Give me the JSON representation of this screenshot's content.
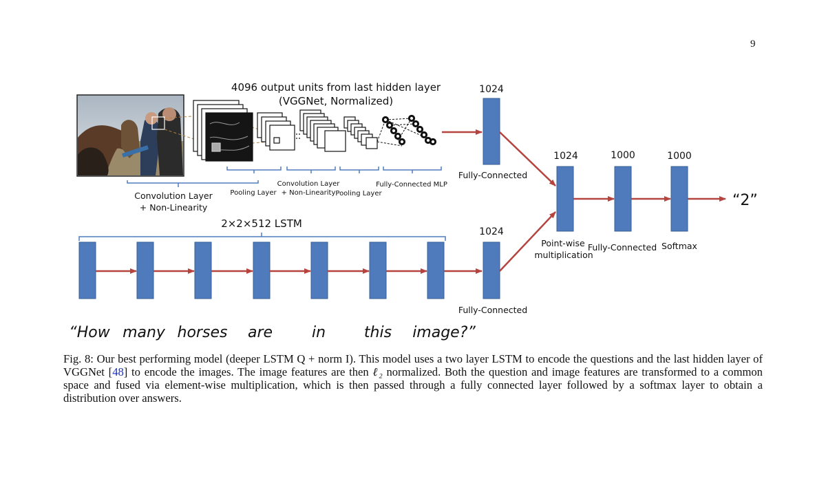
{
  "page_number": "9",
  "figure": {
    "top_title_line1": "4096 output  units from last hidden layer",
    "top_title_line2": "(VGGNet, Normalized)",
    "conv_label_line1": "Convolution Layer",
    "conv_label_line2": "+ Non-Linearity",
    "pool1_label": "Pooling Layer",
    "conv2_label_line1": "Convolution Layer",
    "conv2_label_line2": "+ Non-Linearity",
    "pool2_label": "Pooling  Layer",
    "mlp_label": "Fully-Connected MLP",
    "fc_image_dim": "1024",
    "fc_image_label": "Fully-Connected",
    "lstm_title": "2×2×512 LSTM",
    "fc_question_dim": "1024",
    "fc_question_label": "Fully-Connected",
    "pointwise_dim": "1024",
    "pointwise_label_line1": "Point-wise",
    "pointwise_label_line2": "multiplication",
    "fc_dim": "1000",
    "fc_label": "Fully-Connected",
    "softmax_dim": "1000",
    "softmax_label": "Softmax",
    "answer": "“2”",
    "question_words": [
      "“How",
      "many",
      "horses",
      "are",
      "in",
      "this",
      "image?”"
    ]
  },
  "colors": {
    "block_fill": "#4f7bbd",
    "block_stroke": "#3a5f95",
    "arrow": "#b5443f",
    "brace": "#4f7bbd"
  },
  "caption": {
    "label": "Fig. 8:",
    "text_before_ref": " Our best performing model (deeper LSTM Q + norm I). This model uses a two layer LSTM to encode the questions and the last hidden layer of VGGNet [",
    "ref": "48",
    "text_after_ref": "] to encode the images. The image features are then ",
    "math": "ℓ₂",
    "text_end": " normalized. Both the question and image features are transformed to a common space and fused via element-wise multiplication, which is then passed through a fully connected layer followed by a softmax layer to obtain a distribution over answers."
  }
}
